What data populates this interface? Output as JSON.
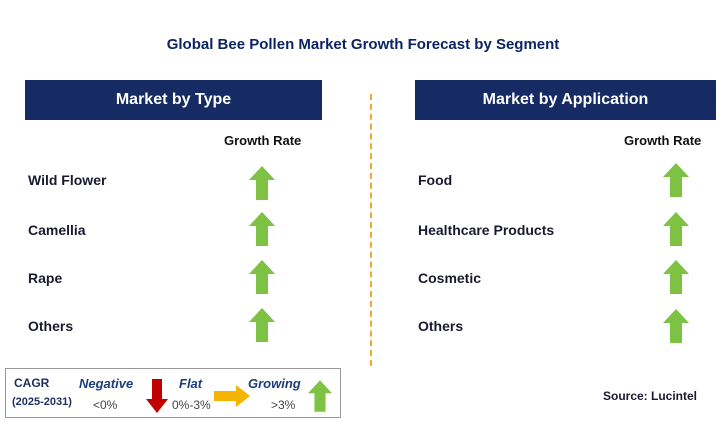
{
  "title": "Global Bee Pollen Market Growth Forecast by Segment",
  "left_panel": {
    "header": "Market by Type",
    "growth_rate_label": "Growth Rate",
    "rows": [
      {
        "label": "Wild Flower",
        "trend": "growing"
      },
      {
        "label": "Camellia",
        "trend": "growing"
      },
      {
        "label": "Rape",
        "trend": "growing"
      },
      {
        "label": "Others",
        "trend": "growing"
      }
    ]
  },
  "right_panel": {
    "header": "Market by Application",
    "growth_rate_label": "Growth Rate",
    "rows": [
      {
        "label": "Food",
        "trend": "growing"
      },
      {
        "label": "Healthcare Products",
        "trend": "growing"
      },
      {
        "label": "Cosmetic",
        "trend": "growing"
      },
      {
        "label": "Others",
        "trend": "growing"
      }
    ]
  },
  "legend": {
    "cagr": "CAGR",
    "period": "(2025-2031)",
    "negative_label": "Negative",
    "negative_value": "<0%",
    "flat_label": "Flat",
    "flat_value": "0%-3%",
    "growing_label": "Growing",
    "growing_value": ">3%"
  },
  "source": "Source: Lucintel",
  "colors": {
    "header_bg": "#162a63",
    "title": "#0c2461",
    "growing_arrow": "#7dc242",
    "negative_arrow": "#c00000",
    "flat_arrow": "#f5b400",
    "divider": "#f0a830"
  }
}
